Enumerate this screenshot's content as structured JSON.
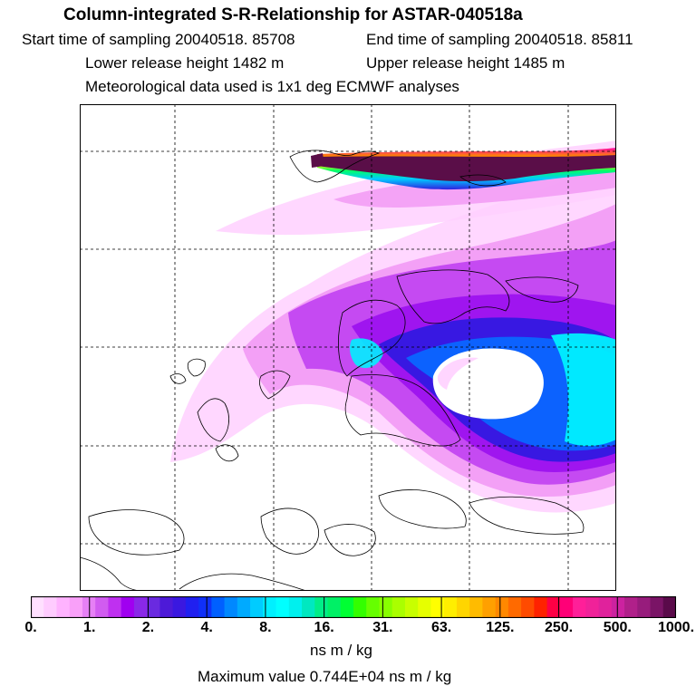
{
  "header": {
    "title": "Column-integrated S-R-Relationship for ASTAR-040518a",
    "start_time": "Start time of sampling 20040518. 85708",
    "end_time": "End time of sampling 20040518. 85811",
    "lower_height": "Lower release height 1482 m",
    "upper_height": "Upper release height 1485 m",
    "met_data": "Meteorological data used is 1x1 deg ECMWF analyses"
  },
  "colorbar": {
    "tick_labels": [
      "0.",
      "1.",
      "2.",
      "4.",
      "8.",
      "16.",
      "31.",
      "63.",
      "125.",
      "250.",
      "500.",
      "1000."
    ],
    "colors": [
      "#ffe0ff",
      "#ffccff",
      "#ffb3ff",
      "#f9a0f9",
      "#e680f5",
      "#d15cf0",
      "#bf30f0",
      "#a000f0",
      "#8a28e8",
      "#6a2ae0",
      "#4d1ad8",
      "#3a18e0",
      "#2020f0",
      "#1030f8",
      "#0060ff",
      "#0088ff",
      "#00aaff",
      "#00ccff",
      "#00f0ff",
      "#00ffff",
      "#00f0ee",
      "#00e8c0",
      "#00ee88",
      "#00f066",
      "#00ff33",
      "#33ff00",
      "#66ff00",
      "#88ff00",
      "#aaff00",
      "#c8ff00",
      "#e6ff00",
      "#ffff00",
      "#ffee00",
      "#ffd500",
      "#ffbb00",
      "#ffa000",
      "#ff8800",
      "#ff6a00",
      "#ff4b00",
      "#ff2200",
      "#ff0044",
      "#ff0077",
      "#ff1f99",
      "#f02299",
      "#e0229c",
      "#cc22a0",
      "#b0208a",
      "#971c7c",
      "#7a1466",
      "#5a0a4a"
    ],
    "units": "ns m / kg"
  },
  "max_value": "Maximum value  0.744E+04 ns m / kg",
  "map": {
    "colors": {
      "pale": "#ffd0ff",
      "light": "#f29af5",
      "magenta": "#c040f2",
      "purple": "#9a10ee",
      "violet": "#6a20e0",
      "blue": "#2c18e0",
      "azure": "#0a66ff",
      "cyan": "#00f0ff",
      "maroon": "#5a0e48"
    }
  }
}
